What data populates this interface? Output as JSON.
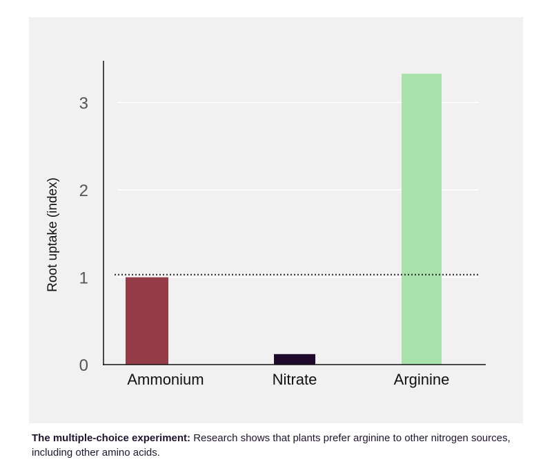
{
  "chart_data": {
    "type": "bar",
    "title": "",
    "xlabel": "",
    "ylabel": "Root uptake (index)",
    "categories": [
      "Ammonium",
      "Nitrate",
      "Arginine"
    ],
    "values": [
      1.0,
      0.12,
      3.33
    ],
    "colors": [
      "#943c48",
      "#1f0a2e",
      "#a8e2aa"
    ],
    "ylim": [
      0,
      3.4
    ],
    "yticks": [
      0,
      1,
      2,
      3
    ],
    "grid": true,
    "reference_line": {
      "value": 1.03,
      "style": "dotted"
    }
  },
  "caption": {
    "bold": "The multiple-choice experiment:",
    "text": " Research shows that plants prefer arginine to other nitrogen sources, including other amino acids."
  }
}
